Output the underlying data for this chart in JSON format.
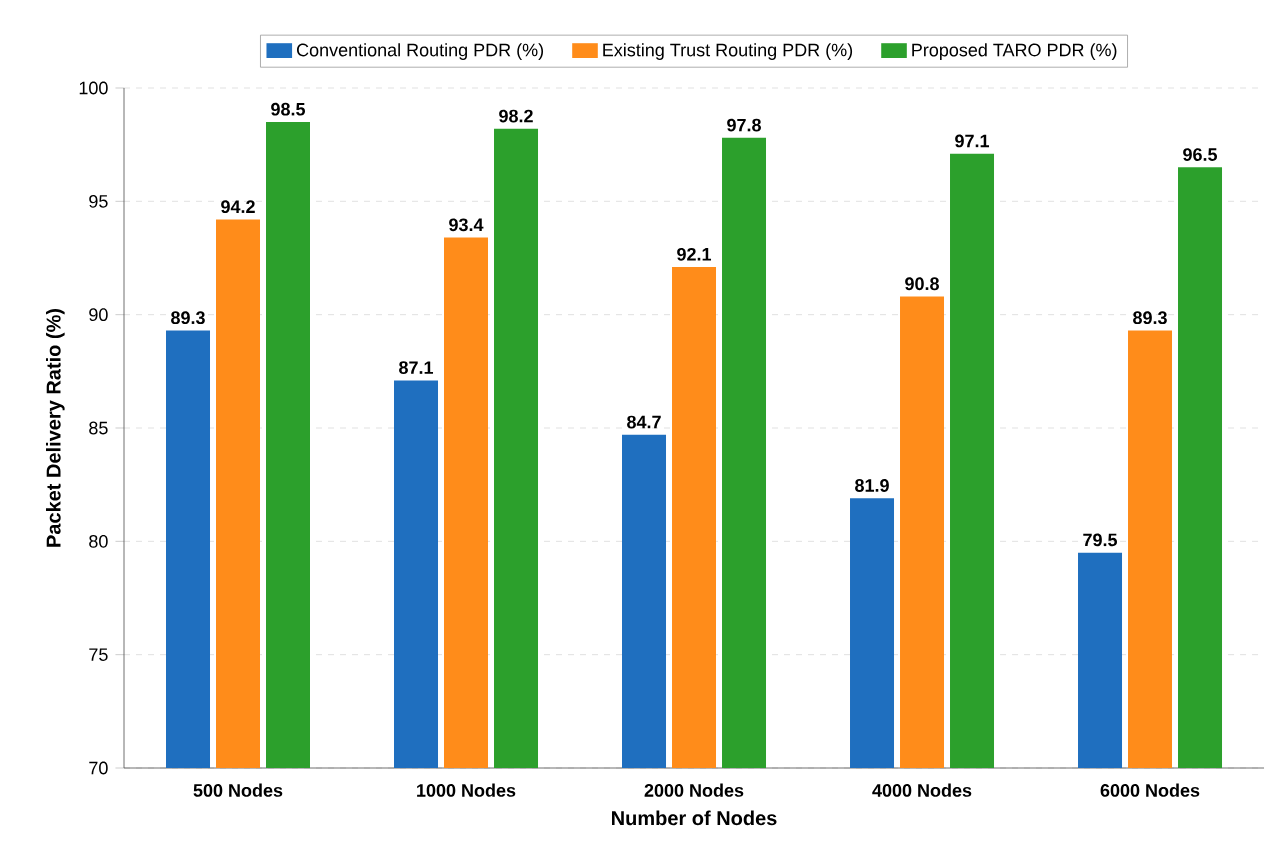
{
  "chart_data": {
    "type": "bar",
    "xlabel": "Number of Nodes",
    "ylabel": "Packet Delivery Ratio (%)",
    "categories": [
      "500 Nodes",
      "1000 Nodes",
      "2000 Nodes",
      "4000 Nodes",
      "6000 Nodes"
    ],
    "series": [
      {
        "name": "Conventional Routing PDR (%)",
        "color": "#1f6fbf",
        "values": [
          89.3,
          87.1,
          84.7,
          81.9,
          79.5
        ]
      },
      {
        "name": "Existing Trust Routing PDR (%)",
        "color": "#ff8c1a",
        "values": [
          94.2,
          93.4,
          92.1,
          90.8,
          89.3
        ]
      },
      {
        "name": "Proposed TARO PDR (%)",
        "color": "#2ca02c",
        "values": [
          98.5,
          98.2,
          97.8,
          97.1,
          96.5
        ]
      }
    ],
    "ylim": [
      70,
      100
    ],
    "yticks": [
      70,
      75,
      80,
      85,
      90,
      95,
      100
    ],
    "grid": "y",
    "legend": "top",
    "data_labels": true
  }
}
